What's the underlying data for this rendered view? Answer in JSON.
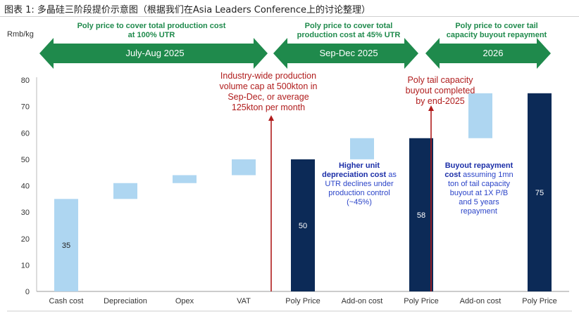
{
  "title": "图表 1: 多晶硅三阶段提价示意图（根据我们在Asia Leaders Conference上的讨论整理）",
  "phases": [
    {
      "desc": [
        "Poly price to cover total production cost",
        "at 100% UTR"
      ],
      "label": "July-Aug 2025"
    },
    {
      "desc": [
        "Poly price to cover total",
        "production cost at 45% UTR"
      ],
      "label": "Sep-Dec 2025"
    },
    {
      "desc": [
        "Poly price to cover tail",
        "capacity buyout repayment"
      ],
      "label": "2026"
    }
  ],
  "annotations": {
    "cap": [
      "Industry-wide production",
      "volume cap at 500kton in",
      "Sep-Dec, or average",
      "125kton  per month"
    ],
    "buyout_done": [
      "Poly tail capacity",
      "buyout completed",
      "by end-2025"
    ],
    "depr_bold": [
      "Higher unit",
      "depreciation cost"
    ],
    "depr_tail": " as",
    "depr_rest": [
      "UTR declines under",
      "production control",
      "(~45%)"
    ],
    "repay_bold": [
      "Buyout repayment",
      "cost"
    ],
    "repay_tail": " assuming 1mn",
    "repay_rest": [
      "ton of tail capacity",
      "buyout at 1X P/B",
      "and 5 years",
      "repayment"
    ]
  },
  "colors": {
    "light_bar": "#aed6f1",
    "dark_bar": "#0c2a57",
    "arrow_green": "#1f8a4c",
    "red": "#b01c1c",
    "blue_text": "#2b44c8"
  },
  "chart_data": {
    "type": "bar",
    "subtype": "waterfall",
    "ylabel": "Rmb/kg",
    "ylim": [
      0,
      80
    ],
    "yticks": [
      0,
      10,
      20,
      30,
      40,
      50,
      60,
      70,
      80
    ],
    "categories": [
      "Cash cost",
      "Depreciation",
      "Opex",
      "VAT",
      "Poly Price",
      "Add-on cost",
      "Poly Price",
      "Add-on cost",
      "Poly Price"
    ],
    "bars": [
      {
        "low": 0,
        "high": 35,
        "kind": "light",
        "label": "35"
      },
      {
        "low": 35,
        "high": 41,
        "kind": "light",
        "label": ""
      },
      {
        "low": 41,
        "high": 44,
        "kind": "light",
        "label": ""
      },
      {
        "low": 44,
        "high": 50,
        "kind": "light",
        "label": ""
      },
      {
        "low": 0,
        "high": 50,
        "kind": "dark",
        "label": "50"
      },
      {
        "low": 50,
        "high": 58,
        "kind": "light",
        "label": ""
      },
      {
        "low": 0,
        "high": 58,
        "kind": "dark",
        "label": "58"
      },
      {
        "low": 58,
        "high": 75,
        "kind": "light",
        "label": ""
      },
      {
        "low": 0,
        "high": 75,
        "kind": "dark",
        "label": "75"
      }
    ],
    "legend": "none",
    "grid": false
  }
}
